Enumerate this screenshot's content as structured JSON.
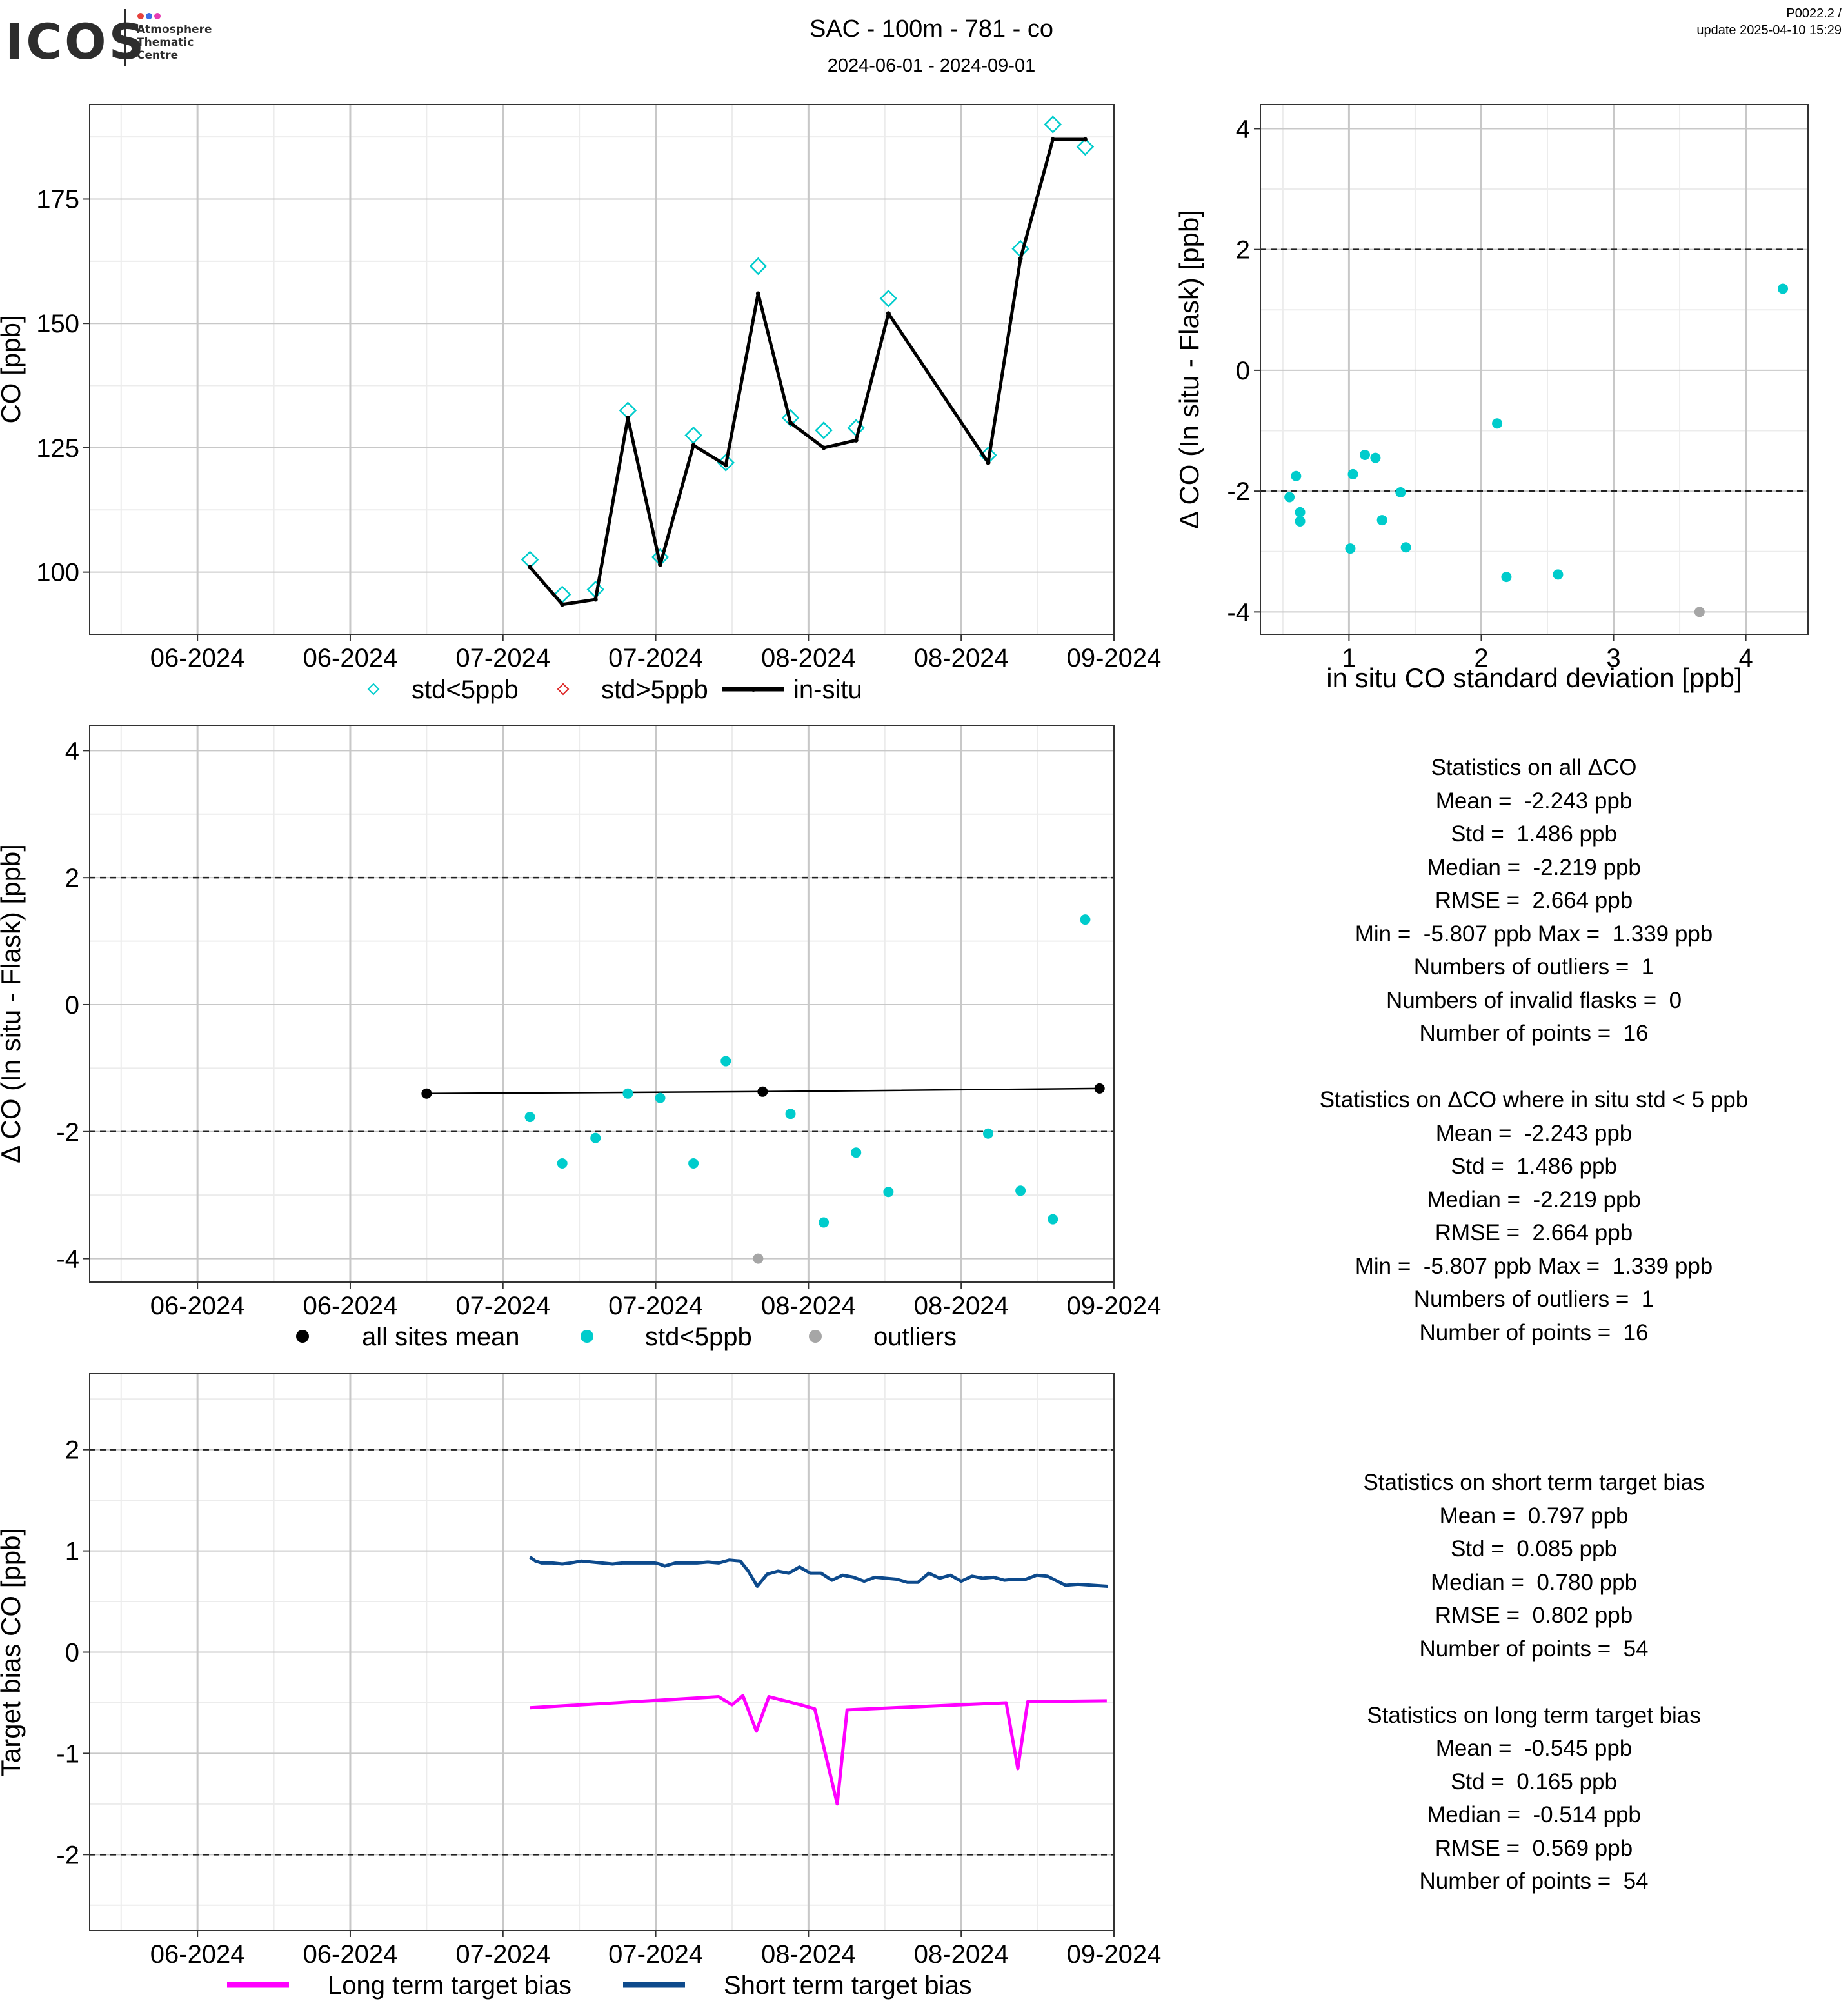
{
  "header": {
    "logo_text": "ICOS",
    "logo_subtitle": [
      "Atmosphere",
      "Thematic",
      "Centre"
    ],
    "title": "SAC - 100m - 781 - co",
    "subtitle": "2024-06-01 - 2024-09-01",
    "version": "P0022.2 /",
    "update": "update  2025-04-10 15:29"
  },
  "colors": {
    "cyan": "#00cccc",
    "red": "#dd2222",
    "grey": "#a6a6a6",
    "magenta": "#ff00ff",
    "navy": "#0d4a8c",
    "grid_major": "#c8c8c8",
    "grid_minor": "#ececec",
    "logo_dots": [
      "#e6423c",
      "#3c6ee6",
      "#e63cb4"
    ]
  },
  "chart_data": [
    {
      "id": "timeseries",
      "type": "line",
      "title": "",
      "xlabel": "",
      "ylabel": "CO [ppb]",
      "xlim": [
        -12,
        102
      ],
      "ylim": [
        87.5,
        194
      ],
      "x_ticks": [
        {
          "x": 0,
          "label": "06-2024"
        },
        {
          "x": 17,
          "label": "06-2024"
        },
        {
          "x": 34,
          "label": "07-2024"
        },
        {
          "x": 51,
          "label": "07-2024"
        },
        {
          "x": 68,
          "label": "08-2024"
        },
        {
          "x": 85,
          "label": "08-2024"
        },
        {
          "x": 102,
          "label": "09-2024"
        }
      ],
      "y_ticks": [
        100,
        125,
        150,
        175
      ],
      "grid": true,
      "legend": [
        "std<5ppb",
        "std>5ppb",
        "in-situ"
      ],
      "series": [
        {
          "name": "std<5ppb",
          "kind": "diamond",
          "points": [
            [
              37,
              102.5
            ],
            [
              40.6,
              95.5
            ],
            [
              44.3,
              96.5
            ],
            [
              47.9,
              132.5
            ],
            [
              51.5,
              103
            ],
            [
              55.2,
              127.5
            ],
            [
              58.8,
              122
            ],
            [
              62.4,
              161.5
            ],
            [
              66,
              131
            ],
            [
              69.7,
              128.5
            ],
            [
              73.3,
              129
            ],
            [
              76.9,
              155
            ],
            [
              88,
              123.5
            ],
            [
              91.6,
              165
            ],
            [
              95.2,
              190
            ],
            [
              98.8,
              185.5
            ]
          ]
        },
        {
          "name": "std>5ppb",
          "kind": "diamond",
          "points": []
        },
        {
          "name": "in-situ",
          "kind": "line",
          "points": [
            [
              37,
              101
            ],
            [
              40.6,
              93.5
            ],
            [
              44.3,
              94.5
            ],
            [
              47.9,
              131
            ],
            [
              51.5,
              101.5
            ],
            [
              55.2,
              125.5
            ],
            [
              58.8,
              121.5
            ],
            [
              62.4,
              156
            ],
            [
              66,
              130
            ],
            [
              69.7,
              125
            ],
            [
              73.3,
              126.5
            ],
            [
              76.9,
              152
            ],
            [
              88,
              122
            ],
            [
              91.6,
              163
            ],
            [
              95.2,
              187
            ],
            [
              98.8,
              187
            ]
          ]
        }
      ]
    },
    {
      "id": "scatter_std",
      "type": "scatter",
      "title": "",
      "xlabel": "in situ CO standard deviation [ppb]",
      "ylabel": "Δ CO (In situ - Flask) [ppb]",
      "xlim": [
        0.33,
        4.47
      ],
      "ylim": [
        -4.37,
        4.4
      ],
      "x_ticks": [
        1,
        2,
        3,
        4
      ],
      "y_ticks": [
        -4,
        -2,
        0,
        2,
        4
      ],
      "hlines": [
        2,
        -2
      ],
      "grid": true,
      "series": [
        {
          "name": "std<5ppb",
          "points": [
            [
              0.55,
              -2.1
            ],
            [
              0.6,
              -1.75
            ],
            [
              0.63,
              -2.35
            ],
            [
              0.63,
              -2.5
            ],
            [
              1.01,
              -2.95
            ],
            [
              1.03,
              -1.72
            ],
            [
              1.12,
              -1.4
            ],
            [
              1.2,
              -1.45
            ],
            [
              1.25,
              -2.48
            ],
            [
              1.39,
              -2.02
            ],
            [
              1.43,
              -2.93
            ],
            [
              2.12,
              -0.88
            ],
            [
              2.19,
              -3.42
            ],
            [
              2.58,
              -3.38
            ],
            [
              4.28,
              1.35
            ]
          ]
        },
        {
          "name": "outliers",
          "points": [
            [
              3.65,
              -4.0
            ]
          ]
        }
      ]
    },
    {
      "id": "delta_timeseries",
      "type": "scatter",
      "title": "",
      "xlabel": "",
      "ylabel": "Δ CO (In situ - Flask) [ppb]",
      "xlim": [
        -12,
        102
      ],
      "ylim": [
        -4.37,
        4.4
      ],
      "x_ticks": [
        {
          "x": 0,
          "label": "06-2024"
        },
        {
          "x": 17,
          "label": "06-2024"
        },
        {
          "x": 34,
          "label": "07-2024"
        },
        {
          "x": 51,
          "label": "07-2024"
        },
        {
          "x": 68,
          "label": "08-2024"
        },
        {
          "x": 85,
          "label": "08-2024"
        },
        {
          "x": 102,
          "label": "09-2024"
        }
      ],
      "y_ticks": [
        -4,
        -2,
        0,
        2,
        4
      ],
      "hlines": [
        2,
        -2
      ],
      "grid": true,
      "legend": [
        "all sites mean",
        "std<5ppb",
        "outliers"
      ],
      "series": [
        {
          "name": "all sites mean",
          "kind": "line+points",
          "points": [
            [
              25.5,
              -1.4
            ],
            [
              62.9,
              -1.37
            ],
            [
              100.4,
              -1.32
            ]
          ]
        },
        {
          "name": "std<5ppb",
          "points": [
            [
              37,
              -1.77
            ],
            [
              40.6,
              -2.5
            ],
            [
              44.3,
              -2.1
            ],
            [
              47.9,
              -1.4
            ],
            [
              51.5,
              -1.47
            ],
            [
              55.2,
              -2.5
            ],
            [
              58.8,
              -0.89
            ],
            [
              66,
              -1.72
            ],
            [
              69.7,
              -3.43
            ],
            [
              73.3,
              -2.33
            ],
            [
              76.9,
              -2.95
            ],
            [
              88,
              -2.03
            ],
            [
              91.6,
              -2.93
            ],
            [
              95.2,
              -3.38
            ],
            [
              98.8,
              1.34
            ]
          ]
        },
        {
          "name": "outliers",
          "points": [
            [
              62.4,
              -4.0
            ]
          ]
        }
      ]
    },
    {
      "id": "target_bias",
      "type": "line",
      "title": "",
      "xlabel": "",
      "ylabel": "Target bias CO [ppb]",
      "xlim": [
        -12,
        102
      ],
      "ylim": [
        -2.75,
        2.75
      ],
      "x_ticks": [
        {
          "x": 0,
          "label": "06-2024"
        },
        {
          "x": 17,
          "label": "06-2024"
        },
        {
          "x": 34,
          "label": "07-2024"
        },
        {
          "x": 51,
          "label": "07-2024"
        },
        {
          "x": 68,
          "label": "08-2024"
        },
        {
          "x": 85,
          "label": "08-2024"
        },
        {
          "x": 102,
          "label": "09-2024"
        }
      ],
      "y_ticks": [
        -2,
        -1,
        0,
        1,
        2
      ],
      "hlines": [
        2,
        -2
      ],
      "grid": true,
      "legend": [
        "Long term target bias",
        "Short term target bias"
      ],
      "series": [
        {
          "name": "Long term target bias",
          "color_key": "magenta",
          "points": [
            [
              37,
              -0.55
            ],
            [
              58,
              -0.44
            ],
            [
              59.5,
              -0.52
            ],
            [
              60.7,
              -0.43
            ],
            [
              62.2,
              -0.78
            ],
            [
              63.6,
              -0.44
            ],
            [
              67.1,
              -0.52
            ],
            [
              68.7,
              -0.56
            ],
            [
              71.2,
              -1.5
            ],
            [
              72.3,
              -0.57
            ],
            [
              90,
              -0.5
            ],
            [
              91.3,
              -1.15
            ],
            [
              92.4,
              -0.49
            ],
            [
              101.2,
              -0.48
            ]
          ]
        },
        {
          "name": "Short term target bias",
          "color_key": "navy",
          "points": [
            [
              37,
              0.94
            ],
            [
              37.6,
              0.9
            ],
            [
              38.3,
              0.88
            ],
            [
              39.5,
              0.88
            ],
            [
              40.6,
              0.87
            ],
            [
              41.5,
              0.88
            ],
            [
              42.7,
              0.9
            ],
            [
              43.9,
              0.89
            ],
            [
              45,
              0.88
            ],
            [
              46.2,
              0.87
            ],
            [
              47.3,
              0.88
            ],
            [
              48.5,
              0.88
            ],
            [
              49.7,
              0.88
            ],
            [
              50.9,
              0.88
            ],
            [
              51.4,
              0.87
            ],
            [
              52,
              0.85
            ],
            [
              53.2,
              0.88
            ],
            [
              54.4,
              0.88
            ],
            [
              55.6,
              0.88
            ],
            [
              56.8,
              0.89
            ],
            [
              58,
              0.88
            ],
            [
              59.2,
              0.91
            ],
            [
              60.4,
              0.9
            ],
            [
              61.3,
              0.8
            ],
            [
              62.3,
              0.65
            ],
            [
              63.4,
              0.77
            ],
            [
              64.6,
              0.8
            ],
            [
              65.8,
              0.78
            ],
            [
              67,
              0.84
            ],
            [
              68.2,
              0.78
            ],
            [
              69.4,
              0.78
            ],
            [
              70.6,
              0.71
            ],
            [
              71.8,
              0.76
            ],
            [
              73,
              0.74
            ],
            [
              74.2,
              0.7
            ],
            [
              75.4,
              0.74
            ],
            [
              76.6,
              0.73
            ],
            [
              77.8,
              0.72
            ],
            [
              79,
              0.69
            ],
            [
              80.2,
              0.69
            ],
            [
              81.4,
              0.78
            ],
            [
              82.6,
              0.73
            ],
            [
              83.8,
              0.76
            ],
            [
              85,
              0.7
            ],
            [
              86.2,
              0.75
            ],
            [
              87.4,
              0.73
            ],
            [
              88.6,
              0.74
            ],
            [
              89.8,
              0.71
            ],
            [
              91,
              0.72
            ],
            [
              92.2,
              0.72
            ],
            [
              93.4,
              0.76
            ],
            [
              94.6,
              0.75
            ],
            [
              96.6,
              0.66
            ],
            [
              98,
              0.67
            ],
            [
              101.3,
              0.65
            ]
          ]
        }
      ]
    }
  ],
  "stats": {
    "all_delta": [
      "Statistics on all ΔCO",
      "Mean =  -2.243 ppb",
      "Std =  1.486 ppb",
      "Median =  -2.219 ppb",
      "RMSE =  2.664 ppb",
      "Min =  -5.807 ppb Max =  1.339 ppb",
      "Numbers of outliers =  1",
      "Numbers of invalid flasks =  0",
      "Number of points =  16",
      "",
      "Statistics on ΔCO where in situ std < 5 ppb",
      "Mean =  -2.243 ppb",
      "Std =  1.486 ppb",
      "Median =  -2.219 ppb",
      "RMSE =  2.664 ppb",
      "Min =  -5.807 ppb Max =  1.339 ppb",
      "Numbers of outliers =  1",
      "Number of points =  16"
    ],
    "target": [
      "Statistics on short term target bias",
      "Mean =  0.797 ppb",
      "Std =  0.085 ppb",
      "Median =  0.780 ppb",
      "RMSE =  0.802 ppb",
      "Number of points =  54",
      "",
      "Statistics on long term target bias",
      "Mean =  -0.545 ppb",
      "Std =  0.165 ppb",
      "Median =  -0.514 ppb",
      "RMSE =  0.569 ppb",
      "Number of points =  54"
    ]
  }
}
